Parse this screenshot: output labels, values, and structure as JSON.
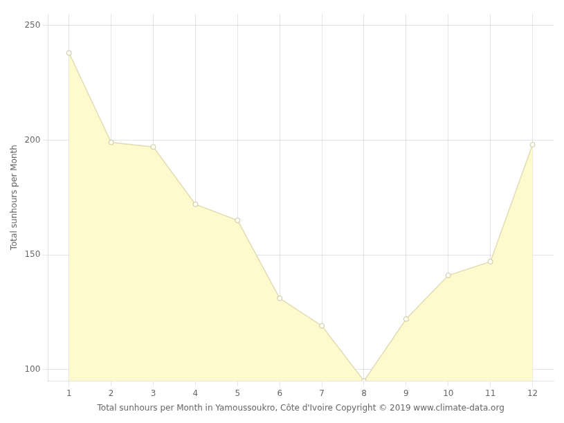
{
  "chart_data": {
    "type": "area",
    "x": [
      1,
      2,
      3,
      4,
      5,
      6,
      7,
      8,
      9,
      10,
      11,
      12
    ],
    "values": [
      238,
      199,
      197,
      172,
      165,
      131,
      119,
      95,
      122,
      141,
      147,
      198
    ],
    "color": "#FFFACD",
    "marker": "circle",
    "xlabel": "Total sunhours per Month in Yamoussoukro, Côte d'Ivoire Copyright © 2019 www.climate-data.org",
    "ylabel": "Total sunhours per Month",
    "xlim": [
      0.5,
      12.5
    ],
    "xticks": [
      1,
      2,
      3,
      4,
      5,
      6,
      7,
      8,
      9,
      10,
      11,
      12
    ],
    "ylim": [
      95,
      255
    ],
    "yticks": [
      100,
      150,
      200,
      250
    ],
    "grid": true
  }
}
